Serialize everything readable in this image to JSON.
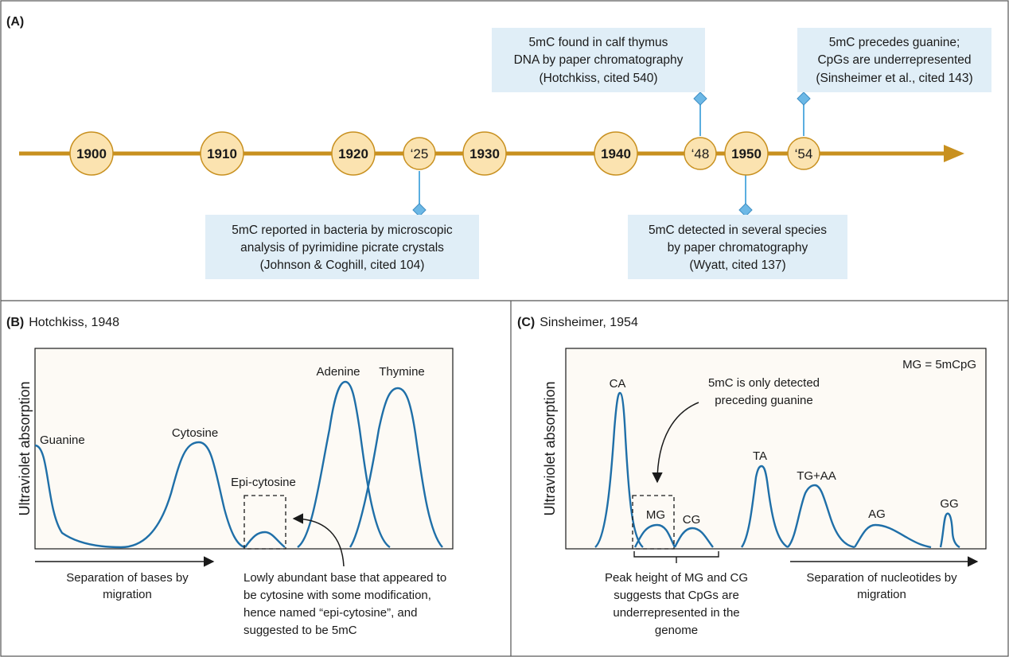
{
  "panel_a": {
    "letter": "(A)",
    "years": [
      "1900",
      "1910",
      "1920",
      "‘25",
      "1930",
      "1940",
      "‘48",
      "1950",
      "‘54"
    ],
    "events": [
      {
        "lines": [
          "5mC reported in bacteria by microscopic",
          "analysis of pyrimidine picrate crystals",
          "(Johnson & Coghill, cited 104)"
        ]
      },
      {
        "lines": [
          "5mC found in calf thymus",
          "DNA by paper chromatography",
          "(Hotchkiss, cited 540)"
        ]
      },
      {
        "lines": [
          "5mC detected in several species",
          "by paper chromatography",
          "(Wyatt, cited 137)"
        ]
      },
      {
        "lines": [
          "5mC precedes guanine;",
          "CpGs are underrepresented",
          "(Sinsheimer et al., cited 143)"
        ]
      }
    ],
    "colors": {
      "timeline": "#c8901f",
      "circle_fill": "#fbe3b0",
      "circle_stroke": "#c8901f",
      "box_fill": "#e0eef7",
      "marker": "#5aaee0"
    }
  },
  "panel_b": {
    "letter": "(B)",
    "title": "Hotchkiss, 1948",
    "ylabel": "Ultraviolet absorption",
    "peaks": [
      "Guanine",
      "Cytosine",
      "Epi-cytosine",
      "Adenine",
      "Thymine"
    ],
    "xlabel_lines": [
      "Separation of bases by",
      "migration"
    ],
    "annotation_lines": [
      "Lowly abundant base that appeared to",
      "be cytosine with some modification,",
      "hence named “epi-cytosine”, and",
      "suggested to be 5mC"
    ]
  },
  "panel_c": {
    "letter": "(C)",
    "title": "Sinsheimer, 1954",
    "ylabel": "Ultraviolet absorption",
    "legend": "MG = 5mCpG",
    "peaks": [
      "CA",
      "MG",
      "CG",
      "TA",
      "TG+AA",
      "AG",
      "GG"
    ],
    "top_annotation_lines": [
      "5mC is only detected",
      "preceding guanine"
    ],
    "bottom_annotation_lines": [
      "Peak height of MG and CG",
      "suggests that CpGs are",
      "underrepresented in the",
      "genome"
    ],
    "xlabel_lines": [
      "Separation of nucleotides by",
      "migration"
    ]
  },
  "colors": {
    "curve": "#1f6fa8",
    "panel_bg": "#fdfaf5",
    "border": "#555555"
  }
}
